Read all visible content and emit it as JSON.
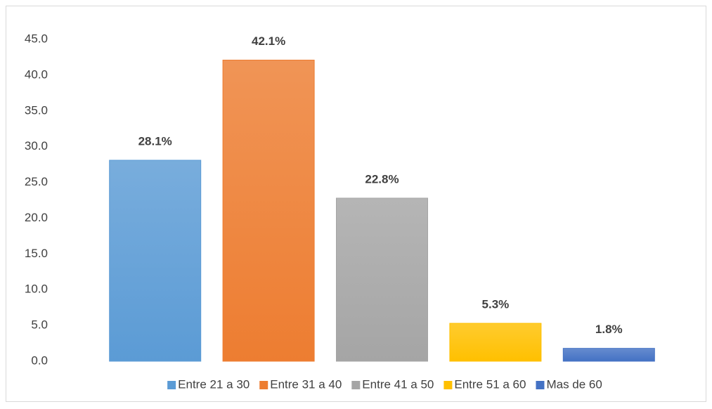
{
  "chart_data": {
    "type": "bar",
    "series": [
      {
        "name": "Entre 21 a 30",
        "color": "#5b9bd5",
        "values": [
          28.1
        ],
        "value_labels": [
          "28.1%"
        ]
      },
      {
        "name": "Entre 31 a 40",
        "color": "#ed7d31",
        "values": [
          42.1
        ],
        "value_labels": [
          "42.1%"
        ]
      },
      {
        "name": "Entre 41 a 50",
        "color": "#a5a5a5",
        "values": [
          22.8
        ],
        "value_labels": [
          "22.8%"
        ]
      },
      {
        "name": "Entre 51 a 60",
        "color": "#ffc000",
        "values": [
          5.3
        ],
        "value_labels": [
          "5.3%"
        ]
      },
      {
        "name": "Mas de 60",
        "color": "#4472c4",
        "values": [
          1.8
        ],
        "value_labels": [
          "1.8%"
        ]
      }
    ],
    "ylim": [
      0,
      45
    ],
    "yticks": [
      {
        "value": 0,
        "label": "0.0"
      },
      {
        "value": 5,
        "label": "5.0"
      },
      {
        "value": 10,
        "label": "10.0"
      },
      {
        "value": 15,
        "label": "15.0"
      },
      {
        "value": 20,
        "label": "20.0"
      },
      {
        "value": 25,
        "label": "25.0"
      },
      {
        "value": 30,
        "label": "30.0"
      },
      {
        "value": 35,
        "label": "35.0"
      },
      {
        "value": 40,
        "label": "40.0"
      },
      {
        "value": 45,
        "label": "45.0"
      }
    ],
    "grid": false,
    "legend": "bottom"
  }
}
